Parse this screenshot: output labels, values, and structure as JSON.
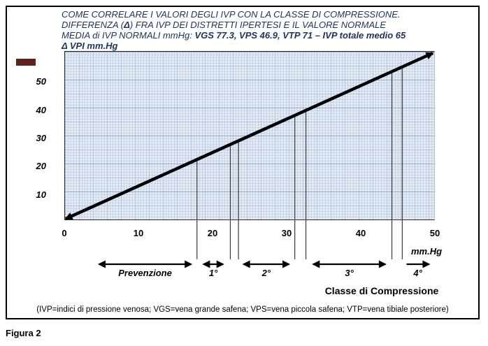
{
  "figure": {
    "title_lines": [
      {
        "segments": [
          {
            "t": "COME CORRELARE I VALORI DEGLI IVP CON LA CLASSE DI COMPRESSIONE.",
            "b": false
          }
        ]
      },
      {
        "segments": [
          {
            "t": "DIFFERENZA (",
            "b": false
          },
          {
            "t": "Δ",
            "b": true
          },
          {
            "t": ") FRA IVP DEI DISTRETTI IPERTESI E IL VALORE NORMALE",
            "b": false
          }
        ]
      },
      {
        "segments": [
          {
            "t": "MEDIA di IVP NORMALI mmHg: ",
            "b": false
          },
          {
            "t": "VGS 77.3, VPS 46.9, VTP 71 – IVP totale medio 65",
            "b": true
          }
        ]
      }
    ],
    "y_axis_title": "Δ VPI  mm.Hg",
    "x_unit_label": "mm.Hg",
    "x_axis_title": "Classe di Compressione",
    "caption": "(IVP=indici di pressione venosa; VGS=vena grande safena; VPS=vena piccola safena; VTP=vena tibiale posteriore)",
    "figure_label": "Figura 2",
    "legend_swatch_color": "#5E2220",
    "title_color": "#20355e",
    "line_color": "#000000"
  },
  "chart_data": {
    "type": "line",
    "title": "Come correlare i valori degli IVP con la classe di compressione",
    "xlabel": "Classe di Compressione (mm.Hg)",
    "ylabel": "Δ VPI mm.Hg",
    "xlim": [
      0,
      50
    ],
    "ylim": [
      0,
      60
    ],
    "x_ticks": [
      0,
      10,
      20,
      30,
      40,
      50
    ],
    "y_ticks": [
      10,
      20,
      30,
      40,
      50
    ],
    "grid": true,
    "legend_position": "top-left",
    "series": [
      {
        "name": "Δ VPI",
        "x": [
          0,
          50
        ],
        "y": [
          0,
          60
        ],
        "color": "#000000",
        "arrow_both_ends": true
      }
    ],
    "drop_lines_x": [
      17.9,
      22.4,
      23.5,
      31.1,
      32.6,
      44.2,
      45.6
    ],
    "compression_classes": [
      {
        "label": "Prevenzione",
        "x_start": 4.3,
        "x_end": 17.5,
        "arrow": "double"
      },
      {
        "label": "1°",
        "x_start": 18.4,
        "x_end": 21.8,
        "arrow": "double"
      },
      {
        "label": "2°",
        "x_start": 23.8,
        "x_end": 30.7,
        "arrow": "double"
      },
      {
        "label": "3°",
        "x_start": 33.2,
        "x_end": 43.7,
        "arrow": "double"
      },
      {
        "label": "4°",
        "x_start": 45.8,
        "x_end": 49.6,
        "arrow": "right"
      }
    ]
  }
}
